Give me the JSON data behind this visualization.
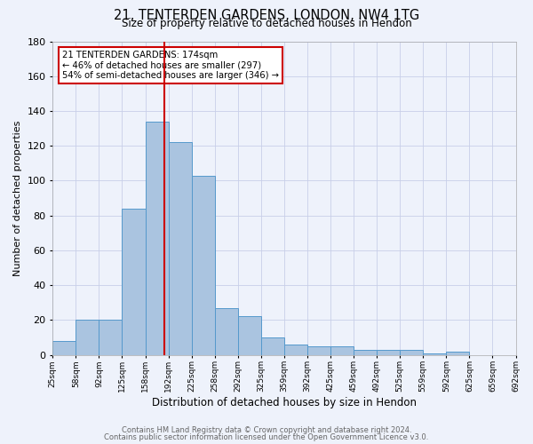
{
  "title_line1": "21, TENTERDEN GARDENS, LONDON, NW4 1TG",
  "title_line2": "Size of property relative to detached houses in Hendon",
  "xlabel": "Distribution of detached houses by size in Hendon",
  "ylabel": "Number of detached properties",
  "bar_values": [
    8,
    20,
    20,
    84,
    134,
    122,
    103,
    27,
    22,
    10,
    6,
    5,
    5,
    3,
    3,
    3,
    1,
    2,
    0,
    0
  ],
  "bin_labels": [
    "25sqm",
    "58sqm",
    "92sqm",
    "125sqm",
    "158sqm",
    "192sqm",
    "225sqm",
    "258sqm",
    "292sqm",
    "325sqm",
    "359sqm",
    "392sqm",
    "425sqm",
    "459sqm",
    "492sqm",
    "525sqm",
    "559sqm",
    "592sqm",
    "625sqm",
    "659sqm",
    "692sqm"
  ],
  "bar_color": "#aac4e0",
  "bar_edgecolor": "#5599cc",
  "ylim": [
    0,
    180
  ],
  "yticks": [
    0,
    20,
    40,
    60,
    80,
    100,
    120,
    140,
    160,
    180
  ],
  "vline_index": 4.82,
  "vline_color": "#cc0000",
  "annotation_title": "21 TENTERDEN GARDENS: 174sqm",
  "annotation_line1": "← 46% of detached houses are smaller (297)",
  "annotation_line2": "54% of semi-detached houses are larger (346) →",
  "footer_line1": "Contains HM Land Registry data © Crown copyright and database right 2024.",
  "footer_line2": "Contains public sector information licensed under the Open Government Licence v3.0.",
  "bg_color": "#eef2fb",
  "plot_bg_color": "#eef2fb",
  "grid_color": "#c8cfe8"
}
